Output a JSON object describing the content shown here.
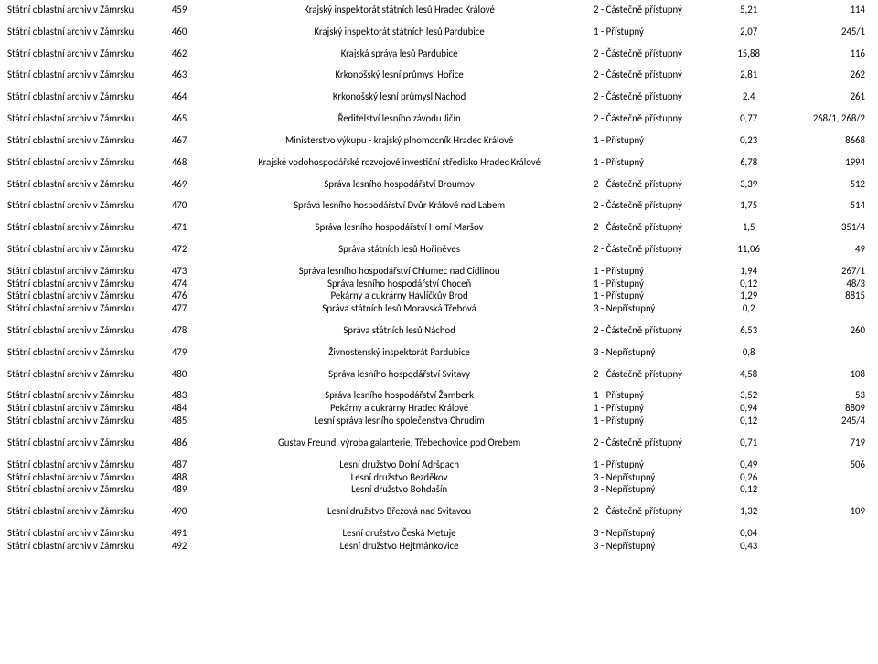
{
  "rows": [
    {
      "archive": "Státní oblastní archiv v Zámrsku",
      "num": "459",
      "desc": "Krajský inspektorát státních lesů Hradec Králové",
      "access": "2 - Částečně přístupný",
      "v1": "5,21",
      "v2": "114"
    },
    {
      "archive": "Státní oblastní archiv v Zámrsku",
      "num": "460",
      "desc": "Krajský inspektorát státních lesů Pardubice",
      "access": "1 - Přístupný",
      "v1": "2,07",
      "v2": "245/1"
    },
    {
      "archive": "Státní oblastní archiv v Zámrsku",
      "num": "462",
      "desc": "Krajská správa lesů Pardubice",
      "access": "2 - Částečně přístupný",
      "v1": "15,88",
      "v2": "116"
    },
    {
      "archive": "Státní oblastní archiv v Zámrsku",
      "num": "463",
      "desc": "Krkonošský lesní průmysl Hořice",
      "access": "2 - Částečně přístupný",
      "v1": "2,81",
      "v2": "262"
    },
    {
      "archive": "Státní oblastní archiv v Zámrsku",
      "num": "464",
      "desc": "Krkonošský lesní průmysl Náchod",
      "access": "2 - Částečně přístupný",
      "v1": "2,4",
      "v2": "261"
    },
    {
      "archive": "Státní oblastní archiv v Zámrsku",
      "num": "465",
      "desc": "Ředitelství lesního závodu Jičín",
      "access": "2 - Částečně přístupný",
      "v1": "0,77",
      "v2": "268/1, 268/2"
    },
    {
      "archive": "Státní oblastní archiv v Zámrsku",
      "num": "467",
      "desc": "Ministerstvo výkupu - krajský plnomocník Hradec Králové",
      "access": "1 - Přístupný",
      "v1": "0,23",
      "v2": "8668"
    },
    {
      "archive": "Státní oblastní archiv v Zámrsku",
      "num": "468",
      "desc": "Krajské vodohospodářské rozvojové investiční středisko Hradec Králové",
      "access": "1 - Přístupný",
      "v1": "6,78",
      "v2": "1994"
    },
    {
      "archive": "Státní oblastní archiv v Zámrsku",
      "num": "469",
      "desc": "Správa lesního hospodářství Broumov",
      "access": "2 - Částečně přístupný",
      "v1": "3,39",
      "v2": "512"
    },
    {
      "archive": "Státní oblastní archiv v Zámrsku",
      "num": "470",
      "desc": "Správa lesního hospodářství Dvůr Králové nad Labem",
      "access": "2 - Částečně přístupný",
      "v1": "1,75",
      "v2": "514"
    },
    {
      "archive": "Státní oblastní archiv v Zámrsku",
      "num": "471",
      "desc": "Správa lesního hospodářství Horní Maršov",
      "access": "2 - Částečně přístupný",
      "v1": "1,5",
      "v2": "351/4"
    },
    {
      "archive": "Státní oblastní archiv v Zámrsku",
      "num": "472",
      "desc": "Správa státních lesů Hořiněves",
      "access": "2 - Částečně přístupný",
      "v1": "11,06",
      "v2": "49"
    },
    {
      "archive": "Státní oblastní archiv v Zámrsku",
      "num": "473",
      "desc": "Správa lesního hospodářství Chlumec nad Cidlinou",
      "access": "1 - Přístupný",
      "v1": "1,94",
      "v2": "267/1",
      "tight": true
    },
    {
      "archive": "Státní oblastní archiv v Zámrsku",
      "num": "474",
      "desc": "Správa lesního hospodářství Choceň",
      "access": "1 - Přístupný",
      "v1": "0,12",
      "v2": "48/3",
      "tight": true
    },
    {
      "archive": "Státní oblastní archiv v Zámrsku",
      "num": "476",
      "desc": "Pekárny a cukrárny Havlíčkův Brod",
      "access": "1 - Přístupný",
      "v1": "1,29",
      "v2": "8815",
      "tight": true
    },
    {
      "archive": "Státní oblastní archiv v Zámrsku",
      "num": "477",
      "desc": "Správa státních lesů Moravská Třebová",
      "access": "3 - Nepřístupný",
      "v1": "0,2",
      "v2": ""
    },
    {
      "archive": "Státní oblastní archiv v Zámrsku",
      "num": "478",
      "desc": "Správa státních lesů Náchod",
      "access": "2 - Částečně přístupný",
      "v1": "6,53",
      "v2": "260"
    },
    {
      "archive": "Státní oblastní archiv v Zámrsku",
      "num": "479",
      "desc": "Živnostenský inspektorát Pardubice",
      "access": "3 - Nepřístupný",
      "v1": "0,8",
      "v2": ""
    },
    {
      "archive": "Státní oblastní archiv v Zámrsku",
      "num": "480",
      "desc": "Správa lesního hospodářství Svitavy",
      "access": "2 - Částečně přístupný",
      "v1": "4,58",
      "v2": "108"
    },
    {
      "archive": "Státní oblastní archiv v Zámrsku",
      "num": "483",
      "desc": "Správa lesního hospodářství Žamberk",
      "access": "1 - Přístupný",
      "v1": "3,52",
      "v2": "53",
      "tight": true
    },
    {
      "archive": "Státní oblastní archiv v Zámrsku",
      "num": "484",
      "desc": "Pekárny a cukrárny Hradec Králové",
      "access": "1 - Přístupný",
      "v1": "0,94",
      "v2": "8809",
      "tight": true
    },
    {
      "archive": "Státní oblastní archiv v Zámrsku",
      "num": "485",
      "desc": "Lesní správa lesního společenstva Chrudim",
      "access": "1 - Přístupný",
      "v1": "0,12",
      "v2": "245/4"
    },
    {
      "archive": "Státní oblastní archiv v Zámrsku",
      "num": "486",
      "desc": "Gustav Freund, výroba galanterie, Třebechovice pod Orebem",
      "access": "2 - Částečně přístupný",
      "v1": "0,71",
      "v2": "719"
    },
    {
      "archive": "Státní oblastní archiv v Zámrsku",
      "num": "487",
      "desc": "Lesní družstvo Dolní Adršpach",
      "access": "1 - Přístupný",
      "v1": "0,49",
      "v2": "506",
      "tight": true
    },
    {
      "archive": "Státní oblastní archiv v Zámrsku",
      "num": "488",
      "desc": "Lesní družstvo Bezděkov",
      "access": "3 - Nepřístupný",
      "v1": "0,26",
      "v2": "",
      "tight": true
    },
    {
      "archive": "Státní oblastní archiv v Zámrsku",
      "num": "489",
      "desc": "Lesní družstvo Bohdašín",
      "access": "3 - Nepřístupný",
      "v1": "0,12",
      "v2": ""
    },
    {
      "archive": "Státní oblastní archiv v Zámrsku",
      "num": "490",
      "desc": "Lesní družstvo Březová nad Svitavou",
      "access": "2 - Částečně přístupný",
      "v1": "1,32",
      "v2": "109"
    },
    {
      "archive": "Státní oblastní archiv v Zámrsku",
      "num": "491",
      "desc": "Lesní družstvo Česká Metuje",
      "access": "3 - Nepřístupný",
      "v1": "0,04",
      "v2": "",
      "tight": true
    },
    {
      "archive": "Státní oblastní archiv v Zámrsku",
      "num": "492",
      "desc": "Lesní družstvo Hejtmánkovice",
      "access": "3 - Nepřístupný",
      "v1": "0,43",
      "v2": "",
      "tight": true
    }
  ]
}
